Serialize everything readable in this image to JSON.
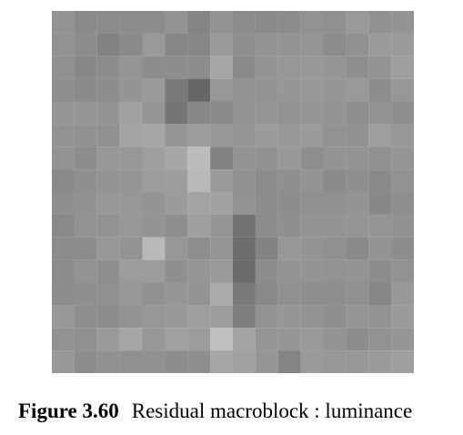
{
  "figure": {
    "label": "Figure 3.60",
    "text": "Residual macroblock : luminance"
  },
  "image": {
    "colors": {
      "pixel_grid": [
        [
          148,
          138,
          139,
          139,
          140,
          147,
          132,
          146,
          140,
          138,
          140,
          146,
          144,
          153,
          145,
          148
        ],
        [
          146,
          141,
          130,
          138,
          153,
          134,
          134,
          155,
          142,
          148,
          148,
          149,
          140,
          145,
          155,
          155
        ],
        [
          144,
          136,
          140,
          149,
          141,
          141,
          140,
          166,
          138,
          148,
          151,
          152,
          150,
          143,
          147,
          159
        ],
        [
          143,
          138,
          141,
          148,
          155,
          122,
          103,
          151,
          148,
          147,
          150,
          152,
          150,
          153,
          141,
          151
        ],
        [
          150,
          150,
          148,
          161,
          149,
          117,
          136,
          138,
          148,
          149,
          146,
          150,
          148,
          142,
          148,
          143
        ],
        [
          147,
          145,
          145,
          163,
          167,
          149,
          156,
          151,
          149,
          155,
          152,
          155,
          146,
          145,
          158,
          151
        ],
        [
          147,
          141,
          152,
          151,
          159,
          167,
          188,
          131,
          147,
          145,
          152,
          142,
          148,
          148,
          144,
          149
        ],
        [
          137,
          143,
          147,
          149,
          156,
          157,
          184,
          154,
          144,
          139,
          143,
          148,
          138,
          143,
          138,
          146
        ],
        [
          143,
          145,
          152,
          151,
          148,
          155,
          163,
          162,
          146,
          140,
          141,
          144,
          144,
          148,
          136,
          142
        ],
        [
          137,
          146,
          146,
          152,
          148,
          142,
          159,
          149,
          114,
          139,
          143,
          147,
          148,
          149,
          149,
          145
        ],
        [
          139,
          140,
          151,
          147,
          185,
          151,
          142,
          149,
          108,
          131,
          151,
          148,
          144,
          138,
          148,
          141
        ],
        [
          139,
          147,
          142,
          156,
          156,
          143,
          150,
          154,
          107,
          141,
          147,
          148,
          146,
          148,
          140,
          146
        ],
        [
          141,
          143,
          144,
          152,
          145,
          150,
          148,
          170,
          122,
          137,
          144,
          142,
          142,
          144,
          134,
          152
        ],
        [
          152,
          143,
          141,
          147,
          151,
          152,
          158,
          157,
          125,
          147,
          150,
          147,
          142,
          150,
          147,
          155
        ],
        [
          146,
          144,
          154,
          166,
          151,
          160,
          156,
          192,
          163,
          149,
          150,
          154,
          147,
          141,
          146,
          150
        ],
        [
          152,
          140,
          145,
          144,
          145,
          141,
          142,
          166,
          160,
          150,
          132,
          154,
          151,
          151,
          154,
          158
        ]
      ]
    }
  }
}
